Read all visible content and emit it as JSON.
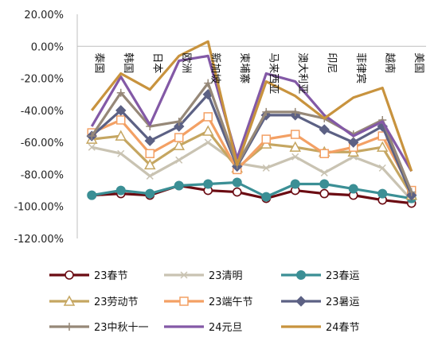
{
  "chart_data": {
    "type": "line",
    "categories": [
      "泰国",
      "韩国",
      "日本",
      "欧洲",
      "新加坡",
      "柬埔寨",
      "马来西亚",
      "澳大利亚",
      "印尼",
      "菲律宾",
      "越南",
      "美国"
    ],
    "ylim": [
      -120,
      20
    ],
    "yticks": [
      "20.00%",
      "0.00%",
      "-20.00%",
      "-40.00%",
      "-60.00%",
      "-80.00%",
      "-100.00%",
      "-120.00%"
    ],
    "grid": false,
    "legend_position": "bottom",
    "series": [
      {
        "name": "23春节",
        "color": "#6b0b12",
        "marker": "circle",
        "values": [
          -93,
          -92,
          -93,
          -87,
          -90,
          -91,
          -95,
          -90,
          -92,
          -93,
          -96,
          -98
        ]
      },
      {
        "name": "23清明",
        "color": "#c9c3b2",
        "marker": "x",
        "values": [
          -63,
          -67,
          -81,
          -71,
          -60,
          -73,
          -76,
          -69,
          -79,
          -69,
          -76,
          -96
        ]
      },
      {
        "name": "23春运",
        "color": "#3b8f95",
        "marker": "circle-filled",
        "values": [
          -93,
          -90,
          -92,
          -87,
          -86,
          -85,
          -94,
          -86,
          -86,
          -89,
          -92,
          -95
        ]
      },
      {
        "name": "23劳动节",
        "color": "#c5a661",
        "marker": "triangle",
        "values": [
          -58,
          -56,
          -74,
          -62,
          -53,
          -76,
          -61,
          -63,
          -66,
          -66,
          -63,
          -93
        ]
      },
      {
        "name": "23端午节",
        "color": "#f3a064",
        "marker": "square",
        "values": [
          -54,
          -46,
          -67,
          -57,
          -44,
          -77,
          -58,
          -55,
          -67,
          -63,
          -56,
          -90
        ]
      },
      {
        "name": "23暑运",
        "color": "#5c6184",
        "marker": "diamond",
        "values": [
          -56,
          -40,
          -59,
          -50,
          -30,
          -75,
          -43,
          -43,
          -52,
          -60,
          -50,
          -93
        ]
      },
      {
        "name": "23中秋十一",
        "color": "#968878",
        "marker": "plus",
        "values": [
          -56,
          -29,
          -50,
          -47,
          -23,
          -74,
          -41,
          -41,
          -45,
          -55,
          -46,
          -91
        ]
      },
      {
        "name": "24元旦",
        "color": "#8359a6",
        "marker": "none",
        "values": [
          -50,
          -19,
          -49,
          -9,
          -6,
          -70,
          -17,
          -22,
          -43,
          -56,
          -47,
          -78
        ]
      },
      {
        "name": "24春节",
        "color": "#c8933e",
        "marker": "none",
        "values": [
          -40,
          -17,
          -27,
          -6,
          3,
          -74,
          -22,
          -31,
          -45,
          -32,
          -26,
          -78
        ]
      }
    ]
  }
}
